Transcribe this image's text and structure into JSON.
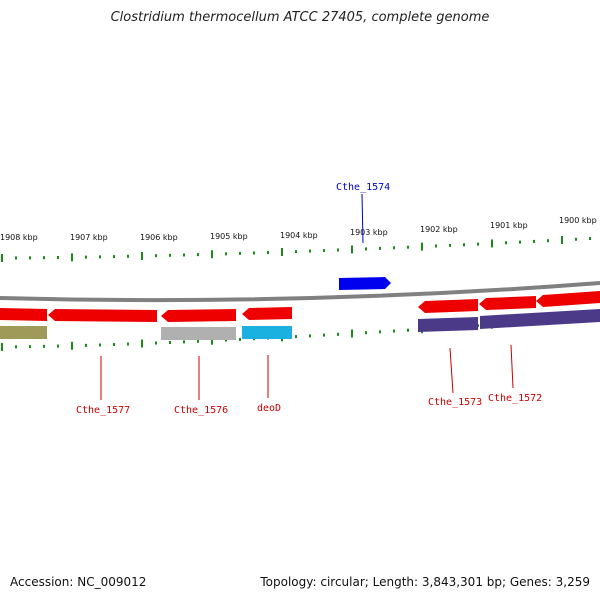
{
  "title": "Clostridium thermocellum ATCC 27405, complete genome",
  "footer": {
    "accession": "Accession: NC_009012",
    "summary": "Topology: circular; Length: 3,843,301 bp; Genes: 3,259"
  },
  "colors": {
    "forward_gene": "#0000ee",
    "reverse_gene": "#ee0000",
    "forward_label": "#0000cc",
    "reverse_label": "#cc0000",
    "backbone": "#808080",
    "tick": "#1a8a1a",
    "feature_olive": "#a09a58",
    "feature_gray": "#b0b0b0",
    "feature_cyan": "#1ab0e0",
    "feature_purple": "#4a3a88"
  },
  "kbp_labels": [
    "1908 kbp",
    "1907 kbp",
    "1906 kbp",
    "1905 kbp",
    "1904 kbp",
    "1903 kbp",
    "1902 kbp",
    "1901 kbp",
    "1900 kbp"
  ],
  "gene_labels": [
    "Cthe_1574",
    "Cthe_1577",
    "Cthe_1576",
    "deoD",
    "Cthe_1573",
    "Cthe_1572"
  ]
}
